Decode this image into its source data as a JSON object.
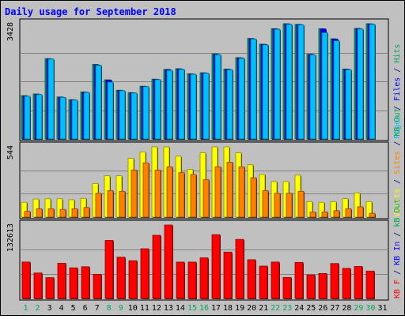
{
  "chart_data": {
    "type": "bar",
    "title": "Daily usage for September 2018",
    "categories": [
      "1",
      "2",
      "3",
      "4",
      "5",
      "6",
      "7",
      "8",
      "9",
      "10",
      "11",
      "12",
      "13",
      "14",
      "15",
      "16",
      "17",
      "18",
      "19",
      "20",
      "21",
      "22",
      "23",
      "24",
      "25",
      "26",
      "27",
      "28",
      "29",
      "30",
      "31"
    ],
    "weekend_days": [
      "1",
      "2",
      "8",
      "9",
      "15",
      "16",
      "22",
      "23",
      "29",
      "30"
    ],
    "panels": [
      {
        "id": "top",
        "max_label": "3428",
        "ymax": 3428,
        "legend": [
          {
            "text": "Pages",
            "color": "#00c0ff"
          },
          {
            "text": " / ",
            "color": "#000080"
          },
          {
            "text": "Files",
            "color": "#0000ff"
          },
          {
            "text": " / ",
            "color": "#000080"
          },
          {
            "text": "Hits",
            "color": "#00aa55"
          }
        ],
        "series": [
          {
            "name": "Hits",
            "color": "#00aa55",
            "values": [
              1290,
              1340,
              2390,
              1250,
              1170,
              1400,
              2220,
              1760,
              1450,
              1380,
              1570,
              1780,
              2070,
              2090,
              1940,
              1970,
              2530,
              2080,
              2420,
              2990,
              2820,
              3280,
              3428,
              3408,
              2520,
              3280,
              2980,
              2080,
              3290,
              3428,
              null
            ]
          },
          {
            "name": "Files",
            "color": "#0000ff",
            "values": [
              1275,
              1325,
              2380,
              1240,
              1160,
              1390,
              2200,
              1750,
              1440,
              1370,
              1560,
              1770,
              2060,
              2080,
              1930,
              1960,
              2515,
              2070,
              2410,
              2980,
              2810,
              3270,
              3420,
              3398,
              2510,
              3270,
              2970,
              2070,
              3280,
              3418,
              null
            ]
          },
          {
            "name": "Pages",
            "color": "#00c0ff",
            "values": [
              1270,
              1320,
              2375,
              1235,
              1155,
              1385,
              2190,
              1690,
              1435,
              1365,
              1555,
              1765,
              2040,
              2070,
              1925,
              1955,
              2505,
              2060,
              2400,
              2970,
              2800,
              3260,
              3410,
              3390,
              2500,
              3160,
              2920,
              2060,
              3270,
              3410,
              null
            ]
          }
        ]
      },
      {
        "id": "middle",
        "max_label": "544",
        "ymax": 544,
        "legend": [
          {
            "text": "Visits",
            "color": "#ffff00"
          },
          {
            "text": " / ",
            "color": "#000080"
          },
          {
            "text": "Sites",
            "color": "#ff8000"
          },
          {
            "text": " / ",
            "color": "#000080"
          },
          {
            "text": "KB Out",
            "color": "#00aa55"
          }
        ],
        "series": [
          {
            "name": "Visits",
            "color": "#ffff00",
            "values": [
              115,
              140,
              142,
              142,
              135,
              145,
              260,
              320,
              320,
              455,
              505,
              544,
              544,
              472,
              370,
              498,
              544,
              544,
              498,
              405,
              330,
              275,
              275,
              325,
              120,
              115,
              120,
              143,
              188,
              120,
              null
            ]
          },
          {
            "name": "Sites",
            "color": "#ff8000",
            "values": [
              45,
              65,
              65,
              60,
              65,
              75,
              185,
              205,
              200,
              365,
              420,
              365,
              390,
              345,
              330,
              290,
              390,
              425,
              390,
              305,
              205,
              185,
              185,
              200,
              40,
              40,
              50,
              65,
              80,
              30,
              null
            ]
          }
        ]
      },
      {
        "id": "bottom",
        "max_label": "132613",
        "ymax": 132613,
        "legend": [
          {
            "text": "KB F",
            "color": "#ff0000"
          },
          {
            "text": " / ",
            "color": "#000080"
          },
          {
            "text": "KB In",
            "color": "#0000ff"
          },
          {
            "text": " / ",
            "color": "#000080"
          },
          {
            "text": "kB Out",
            "color": "#00aa55"
          }
        ],
        "series": [
          {
            "name": "KB F",
            "color": "#ff0000",
            "values": [
              65800,
              46000,
              37600,
              63500,
              55300,
              57300,
              43700,
              104800,
              74600,
              68200,
              89800,
              114100,
              132613,
              65700,
              65700,
              73400,
              115200,
              83700,
              106700,
              70000,
              58500,
              65800,
              38000,
              65100,
              42600,
              45100,
              63100,
              54400,
              57800,
              49500,
              null
            ]
          }
        ]
      }
    ]
  }
}
